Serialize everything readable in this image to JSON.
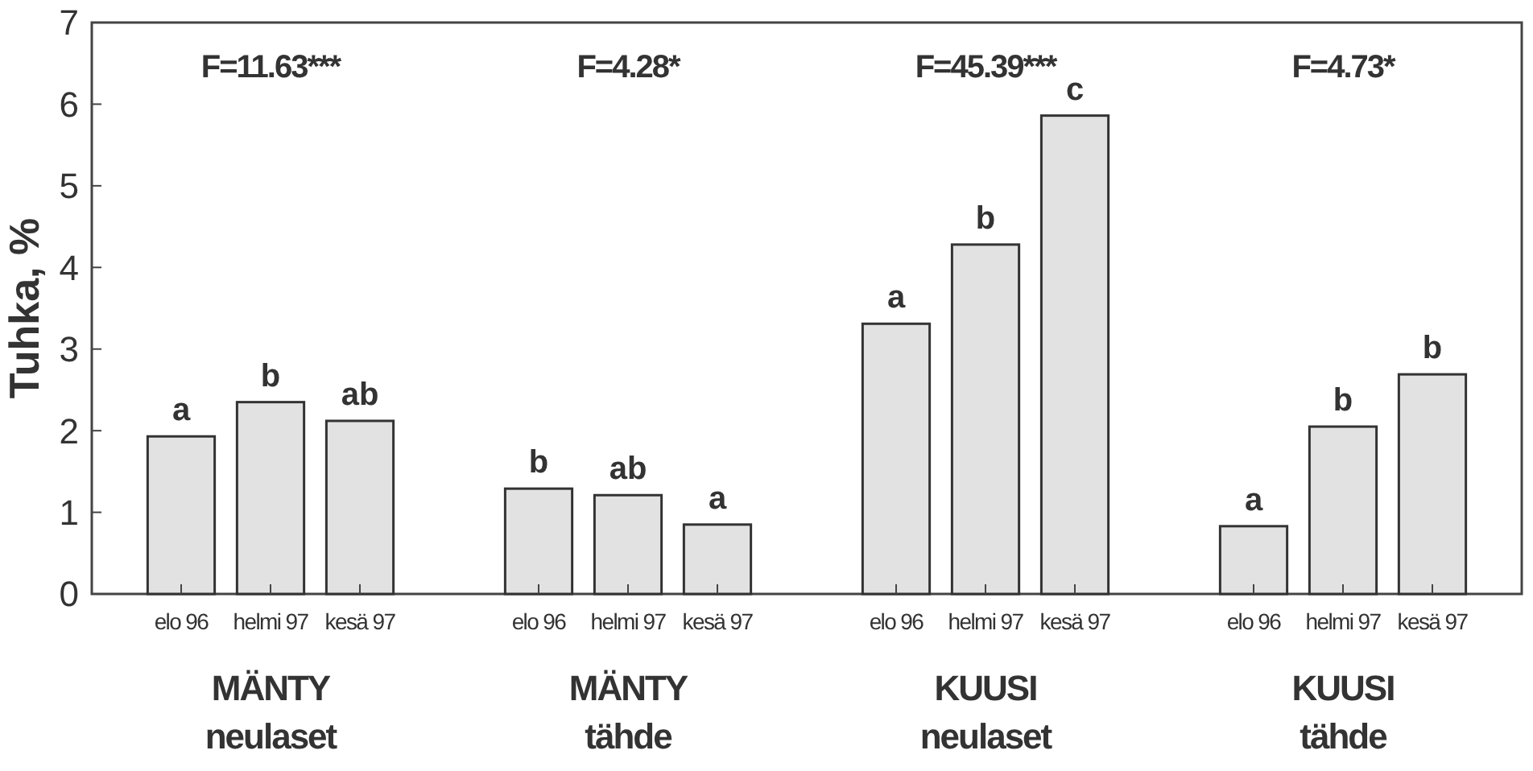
{
  "chart_data": {
    "type": "bar",
    "ylabel": "Tuhka, %",
    "categories": [
      "MÄNTY\nneulaset",
      "MÄNTY\ntähde",
      "KUUSI\nneulaset",
      "KUUSI\ntähde"
    ],
    "series": [
      {
        "name": "elo 96",
        "color": "#e2e2e2",
        "values": [
          1.93,
          1.29,
          3.31,
          0.83
        ],
        "value_labels": [
          "a",
          "b",
          "a",
          "a"
        ]
      },
      {
        "name": "helmi 97",
        "color": "#e2e2e2",
        "values": [
          2.35,
          1.21,
          4.28,
          2.05
        ],
        "value_labels": [
          "b",
          "ab",
          "b",
          "b"
        ]
      },
      {
        "name": "kesä 97",
        "color": "#e2e2e2",
        "values": [
          2.12,
          0.85,
          5.86,
          2.69
        ],
        "value_labels": [
          "ab",
          "a",
          "c",
          "b"
        ]
      }
    ],
    "annotations": [
      "F=11.63***",
      "F=4.28*",
      "F=45.39***",
      "F=4.73*"
    ],
    "ylim": [
      0,
      7
    ],
    "yticks": [
      0,
      1,
      2,
      3,
      4,
      5,
      6,
      7
    ],
    "grid": false
  }
}
